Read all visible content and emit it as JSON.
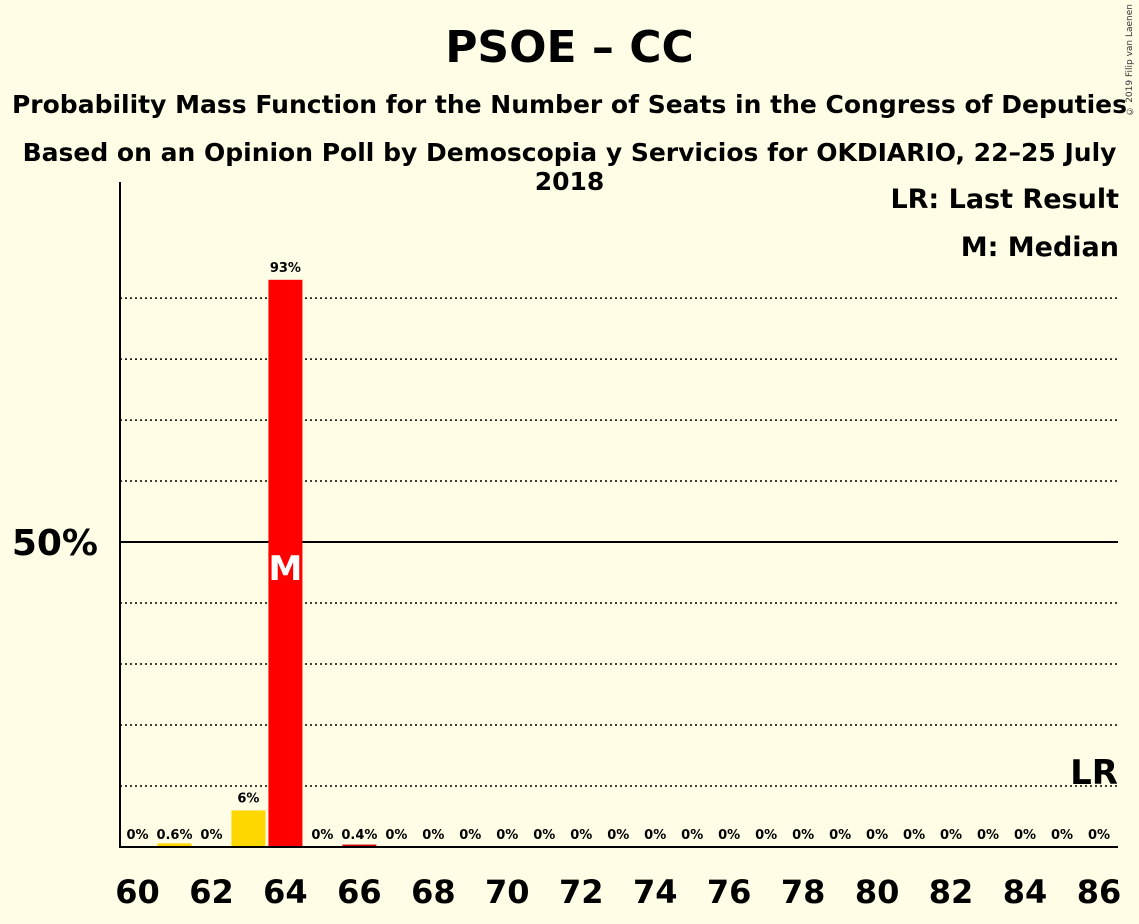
{
  "chart_data": {
    "type": "bar",
    "title": "PSOE – CC",
    "subtitle": "Probability Mass Function for the Number of Seats in the Congress of Deputies",
    "subtitle2": "Based on an Opinion Poll by Demoscopia y Servicios for OKDIARIO, 22–25 July 2018",
    "copyright": "© 2019 Filip van Laenen",
    "legend": {
      "placement": "top-right",
      "last_result": "LR: Last Result",
      "median": "M: Median"
    },
    "x": [
      60,
      61,
      62,
      63,
      64,
      65,
      66,
      67,
      68,
      69,
      70,
      71,
      72,
      73,
      74,
      75,
      76,
      77,
      78,
      79,
      80,
      81,
      82,
      83,
      84,
      85,
      86
    ],
    "values": [
      0,
      0.6,
      0,
      6,
      93,
      0,
      0.4,
      0,
      0,
      0,
      0,
      0,
      0,
      0,
      0,
      0,
      0,
      0,
      0,
      0,
      0,
      0,
      0,
      0,
      0,
      0,
      0
    ],
    "value_labels": [
      "0%",
      "0.6%",
      "0%",
      "6%",
      "93%",
      "0%",
      "0.4%",
      "0%",
      "0%",
      "0%",
      "0%",
      "0%",
      "0%",
      "0%",
      "0%",
      "0%",
      "0%",
      "0%",
      "0%",
      "0%",
      "0%",
      "0%",
      "0%",
      "0%",
      "0%",
      "0%",
      "0%"
    ],
    "x_tick_labels": [
      "60",
      "62",
      "64",
      "66",
      "68",
      "70",
      "72",
      "74",
      "76",
      "78",
      "80",
      "82",
      "84",
      "86"
    ],
    "x_tick_values": [
      60,
      62,
      64,
      66,
      68,
      70,
      72,
      74,
      76,
      78,
      80,
      82,
      84,
      86
    ],
    "y_tick_label": "50%",
    "y_tick_value": 50,
    "ylim": [
      0,
      100
    ],
    "grid": true,
    "median_seat": 64,
    "median_marker": "M",
    "last_result_marker": "LR",
    "colors": {
      "median_bar": "#FF0000",
      "below_median": "#FFD700",
      "above_median": "#CC0000",
      "background": "#FFFDE6"
    }
  }
}
